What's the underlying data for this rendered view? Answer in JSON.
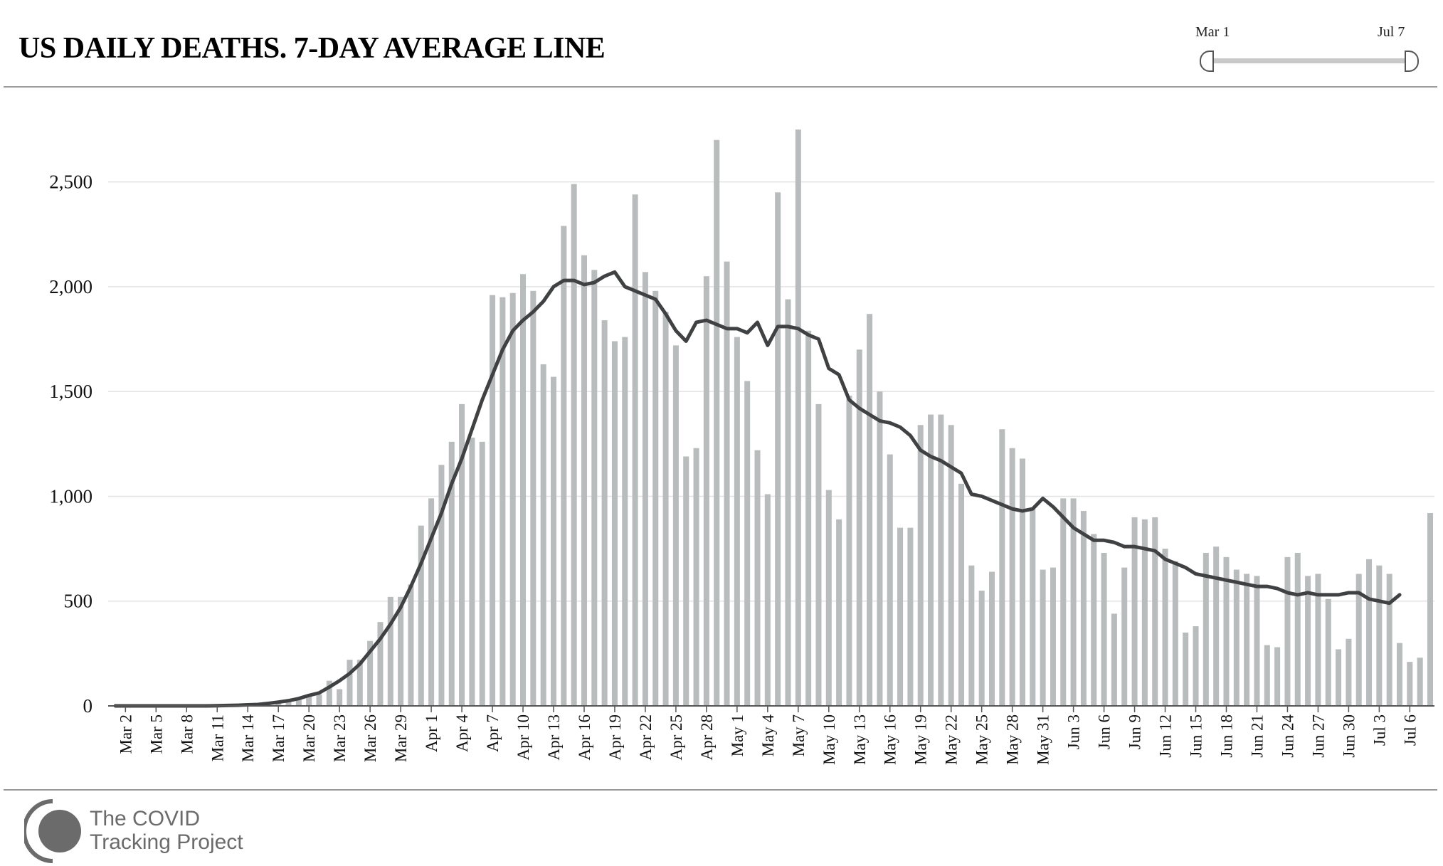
{
  "header": {
    "title": "US DAILY DEATHS. 7-DAY AVERAGE LINE",
    "range_start_label": "Mar 1",
    "range_end_label": "Jul 7"
  },
  "branding": {
    "line1": "The COVID",
    "line2": "Tracking Project"
  },
  "colors": {
    "bar": "#b9bcbc",
    "line": "#3f4142",
    "grid": "#e2e2e2",
    "axis": "#555555"
  },
  "chart_data": {
    "type": "bar",
    "title": "US DAILY DEATHS. 7-DAY AVERAGE LINE",
    "xlabel": "",
    "ylabel": "",
    "ylim": [
      0,
      2750
    ],
    "yticks": [
      0,
      500,
      1000,
      1500,
      2000,
      2500
    ],
    "ytick_labels": [
      "0",
      "500",
      "1,000",
      "1,500",
      "2,000",
      "2,500"
    ],
    "grid": true,
    "x_range": [
      "Mar 1",
      "Jul 7"
    ],
    "xtick_labels": [
      "Mar 2",
      "Mar 5",
      "Mar 8",
      "Mar 11",
      "Mar 14",
      "Mar 17",
      "Mar 20",
      "Mar 23",
      "Mar 26",
      "Mar 29",
      "Apr 1",
      "Apr 4",
      "Apr 7",
      "Apr 10",
      "Apr 13",
      "Apr 16",
      "Apr 19",
      "Apr 22",
      "Apr 25",
      "Apr 28",
      "May 1",
      "May 4",
      "May 7",
      "May 10",
      "May 13",
      "May 16",
      "May 19",
      "May 22",
      "May 25",
      "May 28",
      "May 31",
      "Jun 3",
      "Jun 6",
      "Jun 9",
      "Jun 12",
      "Jun 15",
      "Jun 18",
      "Jun 21",
      "Jun 24",
      "Jun 27",
      "Jun 30",
      "Jul 3",
      "Jul 6"
    ],
    "series": [
      {
        "kind": "bar",
        "values": [
          0,
          0,
          0,
          0,
          0,
          0,
          0,
          0,
          0,
          0,
          1,
          2,
          2,
          4,
          5,
          10,
          15,
          20,
          30,
          50,
          55,
          120,
          80,
          220,
          220,
          310,
          400,
          520,
          520,
          580,
          860,
          990,
          1150,
          1260,
          1440,
          1280,
          1260,
          1960,
          1950,
          1970,
          2060,
          1980,
          1630,
          1570,
          2290,
          2490,
          2150,
          2080,
          1840,
          1740,
          1760,
          2440,
          2070,
          1980,
          1880,
          1720,
          1190,
          1230,
          2050,
          2700,
          2120,
          1760,
          1550,
          1220,
          1010,
          2450,
          1940,
          2750,
          1790,
          1440,
          1030,
          890,
          1480,
          1700,
          1870,
          1500,
          1200,
          850,
          850,
          1340,
          1390,
          1390,
          1340,
          1060,
          670,
          550,
          640,
          1320,
          1230,
          1180,
          940,
          650,
          660,
          990,
          990,
          930,
          820,
          730,
          440,
          660,
          900,
          890,
          900,
          750,
          690,
          350,
          380,
          730,
          760,
          710,
          650,
          630,
          620,
          290,
          280,
          710,
          730,
          620,
          630,
          510,
          270,
          320,
          630,
          700,
          670,
          630,
          300,
          210,
          230,
          920
        ]
      },
      {
        "kind": "line",
        "values": [
          0,
          0,
          0,
          0,
          0,
          0,
          0,
          0,
          0,
          0,
          1,
          2,
          3,
          5,
          7,
          12,
          18,
          25,
          35,
          50,
          62,
          90,
          120,
          155,
          200,
          260,
          320,
          390,
          470,
          570,
          680,
          800,
          920,
          1060,
          1180,
          1320,
          1460,
          1580,
          1700,
          1790,
          1840,
          1880,
          1930,
          2000,
          2030,
          2030,
          2010,
          2020,
          2050,
          2070,
          2000,
          1980,
          1960,
          1940,
          1870,
          1790,
          1740,
          1830,
          1840,
          1820,
          1800,
          1800,
          1780,
          1830,
          1720,
          1810,
          1810,
          1800,
          1770,
          1750,
          1610,
          1580,
          1460,
          1420,
          1390,
          1360,
          1350,
          1330,
          1290,
          1220,
          1190,
          1170,
          1140,
          1110,
          1010,
          1000,
          980,
          960,
          940,
          930,
          940,
          990,
          950,
          900,
          850,
          820,
          790,
          790,
          780,
          760,
          760,
          750,
          740,
          700,
          680,
          660,
          630,
          620,
          610,
          600,
          590,
          580,
          570,
          570,
          560,
          540,
          530,
          540,
          530,
          530,
          530,
          540,
          540,
          510,
          500,
          490,
          530
        ]
      }
    ]
  }
}
